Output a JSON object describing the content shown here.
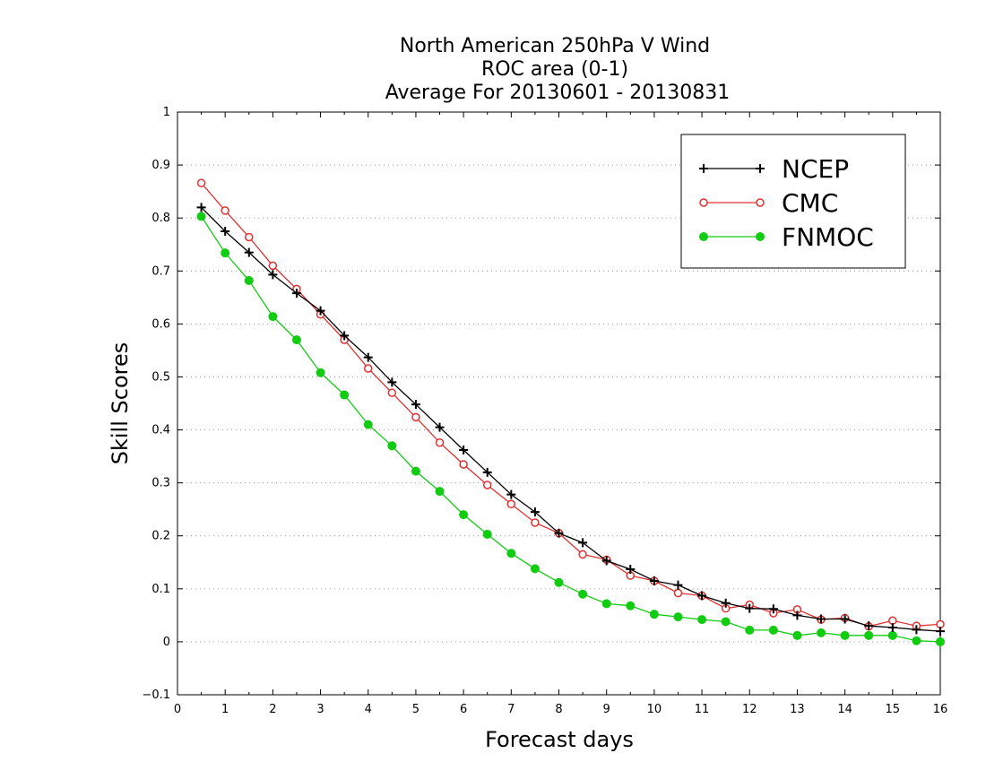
{
  "chart_data": {
    "type": "line",
    "title_lines": [
      "North American 250hPa V Wind",
      "ROC area (0-1)",
      "Average For 20130601 - 20130831"
    ],
    "xlabel": "Forecast days",
    "ylabel": "Skill Scores",
    "xlim": [
      0,
      16
    ],
    "ylim": [
      -0.1,
      1
    ],
    "x_ticks": [
      0,
      1,
      2,
      3,
      4,
      5,
      6,
      7,
      8,
      9,
      10,
      11,
      12,
      13,
      14,
      15,
      16
    ],
    "x_tick_labels": [
      "0",
      "1",
      "2",
      "3",
      "4",
      "5",
      "6",
      "7",
      "8",
      "9",
      "10",
      "11",
      "12",
      "13",
      "14",
      "15",
      "16"
    ],
    "y_ticks": [
      -0.1,
      0,
      0.1,
      0.2,
      0.3,
      0.4,
      0.5,
      0.6,
      0.7,
      0.8,
      0.9,
      1
    ],
    "y_tick_labels": [
      "−0.1",
      "0",
      "0.1",
      "0.2",
      "0.3",
      "0.4",
      "0.5",
      "0.6",
      "0.7",
      "0.8",
      "0.9",
      "1"
    ],
    "grid": "horizontal-dotted",
    "legend_position": "top-right",
    "x": [
      0.5,
      1,
      1.5,
      2,
      2.5,
      3,
      3.5,
      4,
      4.5,
      5,
      5.5,
      6,
      6.5,
      7,
      7.5,
      8,
      8.5,
      9,
      9.5,
      10,
      10.5,
      11,
      11.5,
      12,
      12.5,
      13,
      13.5,
      14,
      14.5,
      15,
      15.5,
      16
    ],
    "series": [
      {
        "name": "NCEP",
        "color": "#000000",
        "marker": "plus",
        "values": [
          0.82,
          0.775,
          0.735,
          0.693,
          0.658,
          0.625,
          0.578,
          0.537,
          0.49,
          0.448,
          0.405,
          0.362,
          0.32,
          0.278,
          0.245,
          0.205,
          0.187,
          0.153,
          0.137,
          0.115,
          0.107,
          0.087,
          0.073,
          0.063,
          0.062,
          0.05,
          0.043,
          0.043,
          0.03,
          0.027,
          0.023,
          0.02
        ]
      },
      {
        "name": "CMC",
        "color": "#e03030",
        "marker": "open-circle",
        "values": [
          0.866,
          0.814,
          0.764,
          0.71,
          0.666,
          0.618,
          0.57,
          0.516,
          0.47,
          0.424,
          0.376,
          0.335,
          0.296,
          0.26,
          0.225,
          0.205,
          0.165,
          0.155,
          0.125,
          0.115,
          0.092,
          0.087,
          0.063,
          0.07,
          0.054,
          0.061,
          0.042,
          0.045,
          0.029,
          0.04,
          0.03,
          0.033
        ]
      },
      {
        "name": "FNMOC",
        "color": "#11cc11",
        "marker": "filled-circle",
        "values": [
          0.803,
          0.734,
          0.682,
          0.614,
          0.57,
          0.508,
          0.466,
          0.41,
          0.37,
          0.322,
          0.284,
          0.24,
          0.203,
          0.167,
          0.138,
          0.112,
          0.09,
          0.072,
          0.068,
          0.052,
          0.047,
          0.042,
          0.038,
          0.022,
          0.022,
          0.012,
          0.017,
          0.012,
          0.012,
          0.012,
          0.002,
          0.0
        ]
      }
    ]
  }
}
